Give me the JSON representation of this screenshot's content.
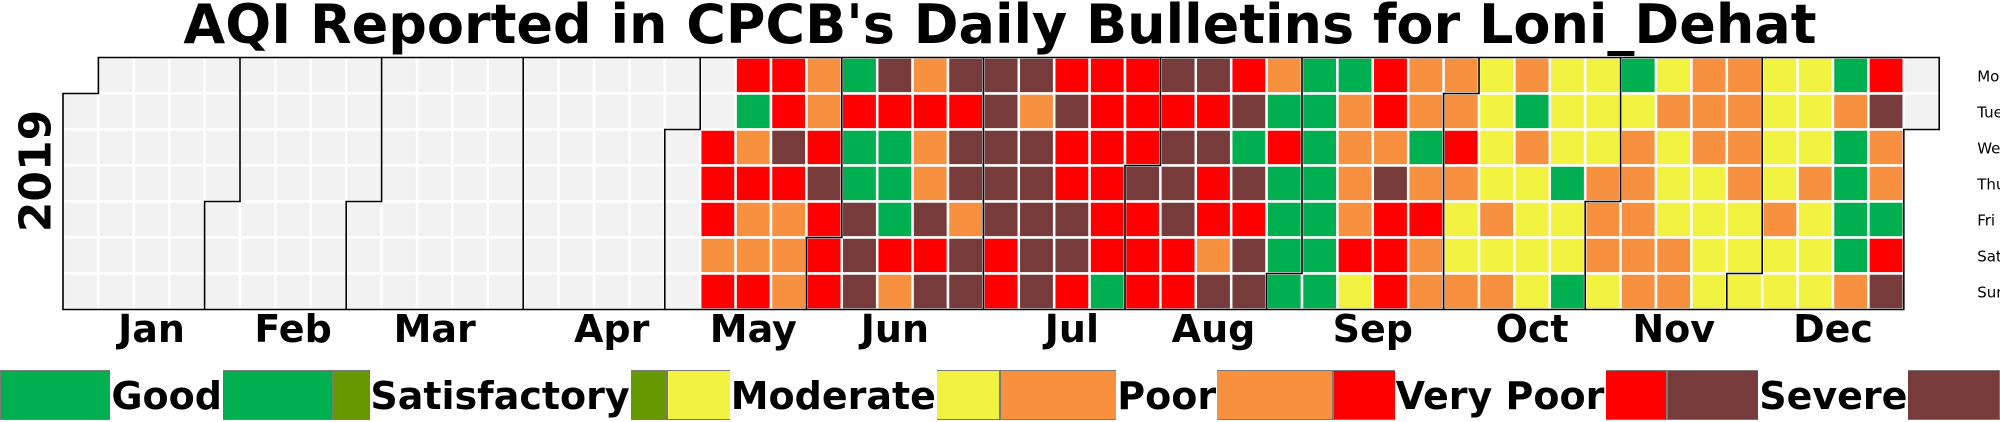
{
  "chart_data": {
    "type": "heatmap",
    "title": "AQI Reported in CPCB's Daily Bulletins for Loni_Dehat",
    "year": "2019",
    "month_labels": [
      "Jan",
      "Feb",
      "Mar",
      "Apr",
      "May",
      "Jun",
      "Jul",
      "Aug",
      "Sep",
      "Oct",
      "Nov",
      "Dec"
    ],
    "weekday_labels": [
      "Mon",
      "Tue",
      "Wed",
      "Thu",
      "Fri",
      "Sat",
      "Sun"
    ],
    "start_date": "2019-01-01",
    "end_date": "2019-12-31",
    "categories": [
      {
        "code": "G",
        "label": "Good",
        "color": "#00b050"
      },
      {
        "code": "S",
        "label": "Satisfactory",
        "color": "#669900"
      },
      {
        "code": "M",
        "label": "Moderate",
        "color": "#f2f240"
      },
      {
        "code": "P",
        "label": "Poor",
        "color": "#f79140"
      },
      {
        "code": "V",
        "label": "Very Poor",
        "color": "#ff0000"
      },
      {
        "code": "E",
        "label": "Severe",
        "color": "#773b3b"
      }
    ],
    "no_data_color": "#f2f2f2",
    "grid_line_color": "#ffffff",
    "month_border_color": "#000000",
    "daily_category_by_week": [
      "-------",
      "-------",
      "-------",
      "-------",
      "-------",
      "-------",
      "-------",
      "-------",
      "-------",
      "-------",
      "-------",
      "-------",
      "-------",
      "-------",
      "-------",
      "-------",
      "-------",
      "-------",
      "--VVVPV",
      "VGPVPPV",
      "VVEVPPP",
      "PPVEVVV",
      "GVGGEEE",
      "EVGGGVP",
      "PVPPEVE",
      "EVEEPEE",
      "EEEEEVV",
      "EPEEEEE",
      "VEVVEEV",
      "VVVVVVG",
      "VVVEVVV",
      "EVEEEVV",
      "EVEVVPE",
      "VEGEVEE",
      "PGVGGGG",
      "GGGGGGG",
      "GPPPPVM",
      "VVPEVVV",
      "PPGPVPP",
      "PPVPMMP",
      "MMMMPMP",
      "PGPMMMM",
      "MMMGMMG",
      "MMMPPPM",
      "GMPPPPP",
      "MPMMMPP",
      "PPPMMMM",
      "PPPPMMM",
      "MMMMPMM",
      "MMMPMMM",
      "GPGGGGP",
      "VEPPGVE",
      "-------",
      "-------",
      "-------",
      "-------",
      "-------",
      "-------",
      "-------",
      "-------",
      "-------",
      "-------",
      "-------",
      "-------",
      "-------",
      "-------",
      "-------",
      "-------",
      "-------",
      "-------",
      "-------",
      "-------",
      "-------"
    ]
  },
  "legend": {
    "items": [
      {
        "label": "Good",
        "color": "#00b050"
      },
      {
        "label": "Satisfactory",
        "color": "#669900"
      },
      {
        "label": "Moderate",
        "color": "#f2f240"
      },
      {
        "label": "Poor",
        "color": "#f79140"
      },
      {
        "label": "Very Poor",
        "color": "#ff0000"
      },
      {
        "label": "Severe",
        "color": "#773b3b"
      }
    ]
  }
}
